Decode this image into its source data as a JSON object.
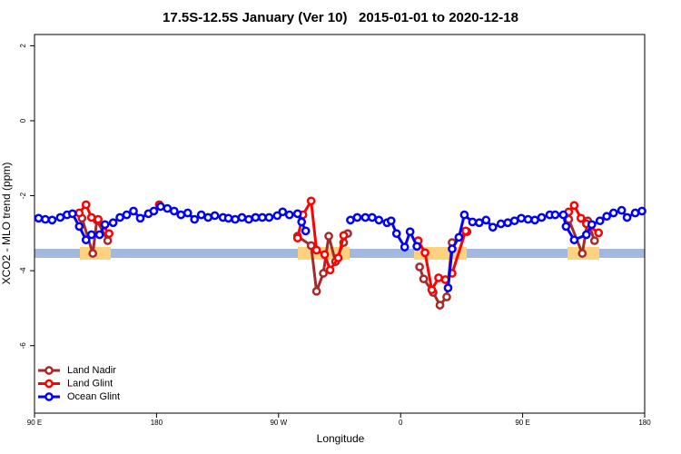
{
  "chart_data": {
    "type": "line",
    "title": "17.5S-12.5S January (Ver 10)   2015-01-01 to 2020-12-18",
    "x_label": "Longitude",
    "y_label": "XCO2 - MLO trend (ppm)",
    "xlim": [
      90,
      540
    ],
    "ylim": [
      -7.8,
      2.3
    ],
    "xticks": [
      {
        "value": 90,
        "label": "90 E"
      },
      180,
      {
        "value": 270,
        "label": "90 W"
      },
      {
        "value": 360,
        "label": "0"
      },
      {
        "value": 450,
        "label": "90 E"
      },
      {
        "value": 540,
        "label": "180"
      }
    ],
    "yticks": [
      -6,
      -4,
      -2,
      0,
      2
    ],
    "legend": "bottom-left",
    "series": [
      {
        "name": "Land Nadir",
        "color": "#a52a2a",
        "x": [
          125,
          133,
          136,
          144,
          null,
          284,
          294,
          298,
          303,
          307,
          312,
          318,
          321,
          null,
          374,
          377,
          384,
          389,
          394,
          398,
          409,
          null,
          484,
          494,
          498,
          503
        ],
        "values": [
          -2.6,
          -3.54,
          -2.65,
          -3.2,
          null,
          -3.08,
          -3.33,
          -4.55,
          -4.07,
          -3.08,
          -3.76,
          -3.25,
          -3.01,
          null,
          -3.9,
          -4.22,
          -4.58,
          -4.92,
          -4.7,
          -3.25,
          -2.96,
          null,
          -2.63,
          -3.54,
          -2.67,
          -3.2
        ]
      },
      {
        "name": "Land Glint",
        "color": "#ff0000",
        "x": [
          123,
          128,
          132,
          137,
          145,
          null,
          182,
          null,
          284,
          288,
          294,
          298,
          304,
          308,
          314,
          318,
          null,
          373,
          378,
          383,
          388,
          393,
          398,
          408,
          null,
          484,
          488,
          493,
          497,
          506
        ],
        "values": [
          -2.46,
          -2.24,
          -2.58,
          -2.63,
          -3.01,
          null,
          -2.24,
          null,
          -3.13,
          -2.51,
          -2.14,
          -3.45,
          -3.57,
          -3.98,
          -3.66,
          -3.06,
          null,
          -3.2,
          -3.52,
          -4.51,
          -4.19,
          -4.24,
          -4.07,
          -2.94,
          null,
          -2.43,
          -2.26,
          -2.6,
          -2.75,
          -2.99
        ]
      },
      {
        "name": "Ocean Glint",
        "color": "#0000ff",
        "x": [
          93,
          98,
          103,
          109,
          114,
          118,
          123,
          128,
          132,
          138,
          142,
          148,
          153,
          158,
          163,
          168,
          174,
          178,
          183,
          188,
          193,
          198,
          203,
          208,
          213,
          218,
          223,
          229,
          233,
          238,
          243,
          248,
          253,
          258,
          263,
          269,
          273,
          278,
          284,
          287,
          290,
          null,
          323,
          328,
          334,
          339,
          344,
          350,
          353,
          357,
          363,
          367,
          372,
          null,
          395,
          398,
          403,
          407,
          413,
          418,
          423,
          428,
          434,
          439,
          444,
          449,
          454,
          459,
          464,
          470,
          474,
          480,
          482,
          488,
          497,
          501,
          507,
          512,
          517,
          523,
          527,
          533,
          538
        ],
        "values": [
          -2.6,
          -2.63,
          -2.65,
          -2.58,
          -2.51,
          -2.48,
          -2.82,
          -3.18,
          -3.04,
          -3.04,
          -2.77,
          -2.72,
          -2.58,
          -2.51,
          -2.41,
          -2.6,
          -2.48,
          -2.41,
          -2.29,
          -2.34,
          -2.41,
          -2.51,
          -2.46,
          -2.63,
          -2.51,
          -2.58,
          -2.53,
          -2.58,
          -2.6,
          -2.63,
          -2.58,
          -2.63,
          -2.58,
          -2.58,
          -2.58,
          -2.53,
          -2.43,
          -2.51,
          -2.48,
          -2.7,
          -2.94,
          null,
          -2.65,
          -2.58,
          -2.58,
          -2.58,
          -2.65,
          -2.72,
          -2.67,
          -3.01,
          -3.37,
          -2.96,
          -3.35,
          null,
          -4.46,
          -3.42,
          -3.11,
          -2.51,
          -2.7,
          -2.72,
          -2.65,
          -2.84,
          -2.75,
          -2.72,
          -2.67,
          -2.6,
          -2.63,
          -2.65,
          -2.58,
          -2.51,
          -2.51,
          -2.51,
          -2.82,
          -3.18,
          -3.04,
          -2.77,
          -2.67,
          -2.55,
          -2.46,
          -2.39,
          -2.58,
          -2.46,
          -2.41
        ]
      }
    ]
  }
}
